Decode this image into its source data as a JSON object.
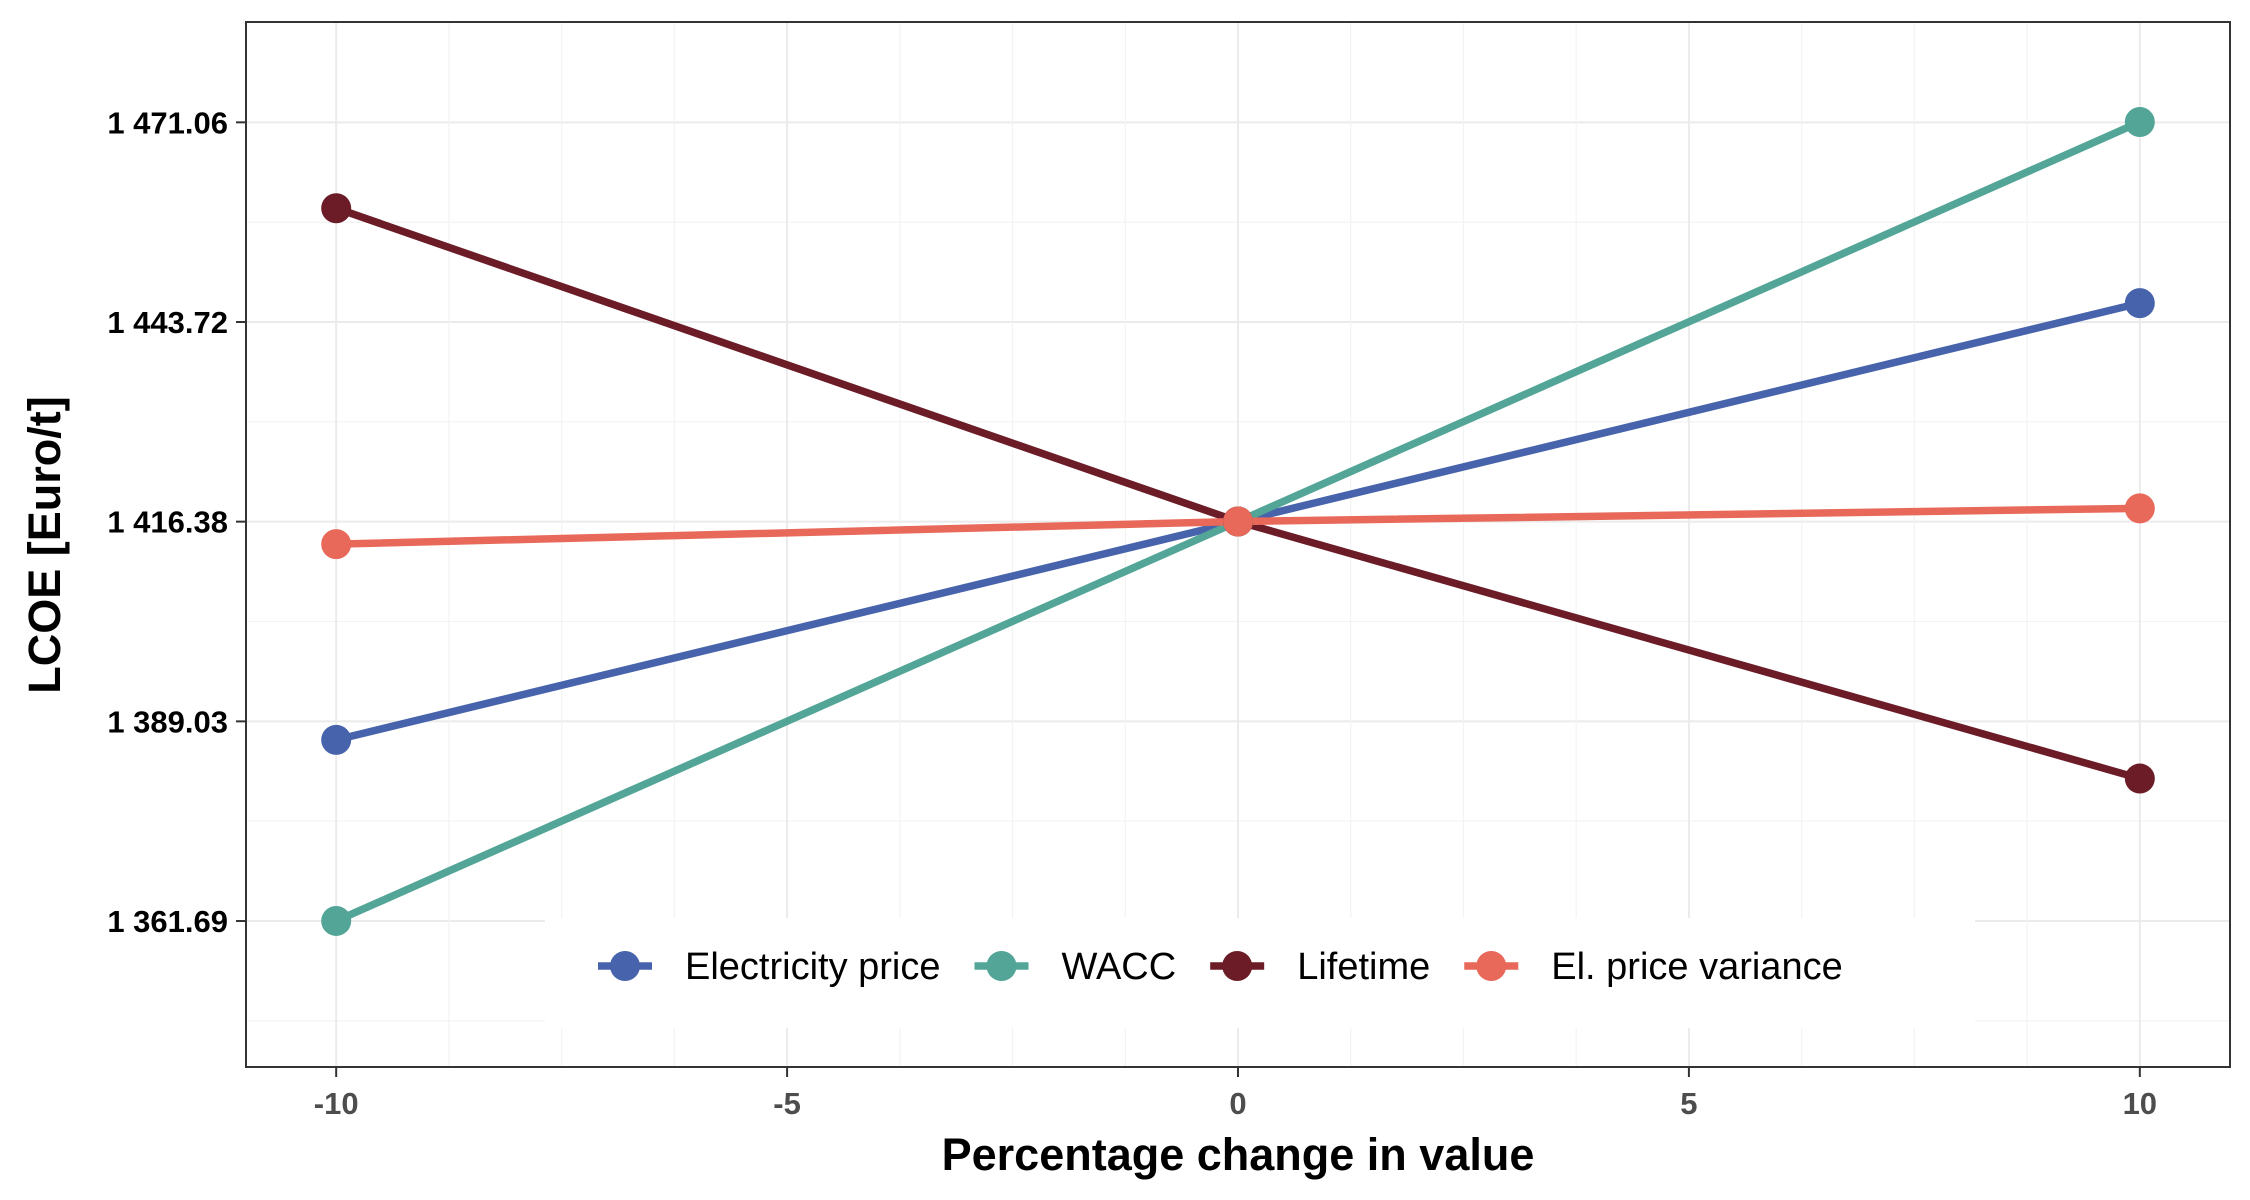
{
  "chart_data": {
    "type": "line",
    "xlabel": "Percentage change in value",
    "ylabel": "LCOE [Euro/t]",
    "x": [
      -10,
      0,
      10
    ],
    "xlim": [
      -11,
      11
    ],
    "ylim": [
      1341.7,
      1484.8
    ],
    "x_ticks": [
      -10,
      -5,
      0,
      5,
      10
    ],
    "x_tick_labels": [
      "-10",
      "-5",
      "0",
      "5",
      "10"
    ],
    "y_ticks": [
      1361.69,
      1389.03,
      1416.38,
      1443.72,
      1471.06
    ],
    "y_tick_labels": [
      "1 361.69",
      "1 389.03",
      "1 416.38",
      "1 443.72",
      "1 471.06"
    ],
    "grid": true,
    "legend_position": "bottom-inside",
    "series": [
      {
        "name": "Electricity price",
        "color": "#4763ab",
        "values": [
          1386.5,
          1416.4,
          1446.3
        ]
      },
      {
        "name": "WACC",
        "color": "#52a597",
        "values": [
          1361.7,
          1416.4,
          1471.1
        ]
      },
      {
        "name": "Lifetime",
        "color": "#6b1c27",
        "values": [
          1459.3,
          1416.4,
          1381.2
        ]
      },
      {
        "name": "El. price variance",
        "color": "#e8695a",
        "values": [
          1413.3,
          1416.4,
          1418.2
        ]
      }
    ]
  }
}
